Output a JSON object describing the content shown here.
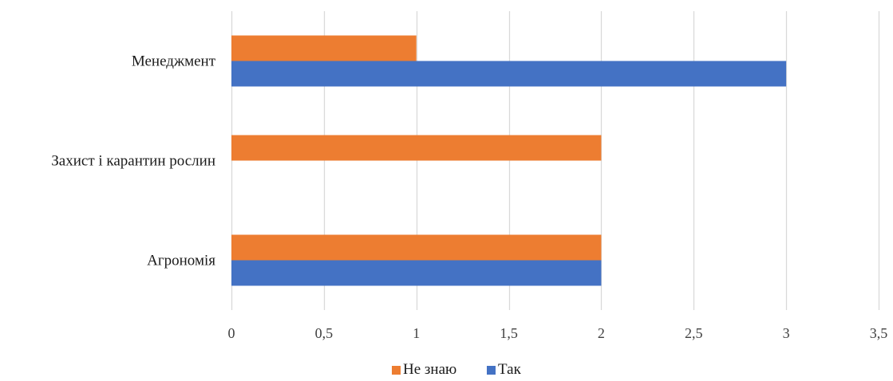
{
  "chart_data": {
    "type": "bar",
    "orientation": "horizontal",
    "categories": [
      "Менеджмент",
      "Захист і карантин рослин",
      "Агрономія"
    ],
    "series": [
      {
        "name": "Не знаю",
        "color": "#ED7D31",
        "values": [
          1,
          2,
          2
        ]
      },
      {
        "name": "Так",
        "color": "#4472C4",
        "values": [
          3,
          0,
          2
        ]
      }
    ],
    "xlim": [
      0,
      3.5
    ],
    "x_ticks": [
      0,
      0.5,
      1,
      1.5,
      2,
      2.5,
      3,
      3.5
    ],
    "x_tick_labels": [
      "0",
      "0,5",
      "1",
      "1,5",
      "2",
      "2,5",
      "3",
      "3,5"
    ],
    "grid": "vertical",
    "grid_color": "#d9d9d9",
    "legend_position": "bottom"
  }
}
